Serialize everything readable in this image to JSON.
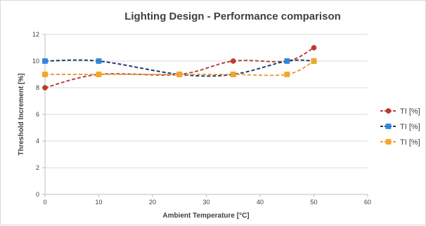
{
  "chart_data": {
    "type": "line",
    "title": "Lighting Design - Performance comparison",
    "xlabel": "Ambient Temperature [°C]",
    "ylabel": "Threshold Increment [%]",
    "xlim": [
      0,
      60
    ],
    "ylim": [
      0,
      12
    ],
    "x_ticks": [
      0,
      10,
      20,
      30,
      40,
      50,
      60
    ],
    "y_ticks": [
      0,
      2,
      4,
      6,
      8,
      10,
      12
    ],
    "grid": "horizontal",
    "legend_position": "right",
    "series": [
      {
        "name": "TI [%]",
        "color": "#c0392b",
        "line_color": "#b5473a",
        "marker": "circle",
        "line_style": "dashed-smooth",
        "points": [
          [
            0,
            8
          ],
          [
            10,
            9
          ],
          [
            25,
            9
          ],
          [
            35,
            10
          ],
          [
            45,
            10
          ],
          [
            50,
            11
          ]
        ]
      },
      {
        "name": "TI [%]",
        "color": "#2e86de",
        "line_color": "#1f3b6e",
        "marker": "square",
        "line_style": "dashed-smooth",
        "points": [
          [
            0,
            10
          ],
          [
            10,
            10
          ],
          [
            25,
            9
          ],
          [
            35,
            9
          ],
          [
            45,
            10
          ],
          [
            50,
            10
          ]
        ]
      },
      {
        "name": "TI [%]",
        "color": "#f5a623",
        "line_color": "#e8a040",
        "marker": "square",
        "line_style": "dashed-smooth",
        "points": [
          [
            0,
            9
          ],
          [
            10,
            9
          ],
          [
            25,
            9
          ],
          [
            35,
            9
          ],
          [
            45,
            9
          ],
          [
            50,
            10
          ]
        ]
      }
    ]
  }
}
